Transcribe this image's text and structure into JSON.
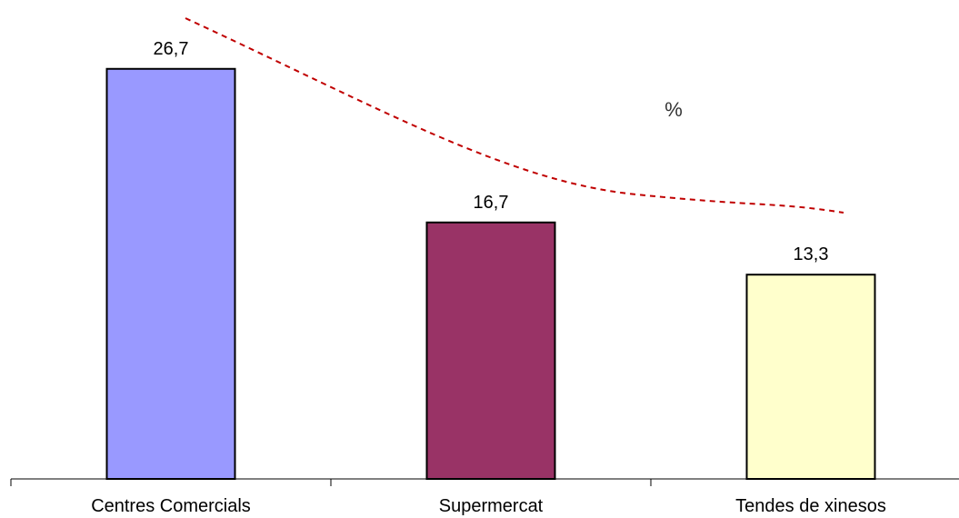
{
  "chart_data": {
    "type": "bar",
    "categories": [
      "Centres Comercials",
      "Supermercat",
      "Tendes de xinesos"
    ],
    "values": [
      26.7,
      16.7,
      13.3
    ],
    "value_labels": [
      "26,7",
      "16,7",
      "13,3"
    ],
    "unit": "%",
    "bar_colors": [
      "#9999FF",
      "#993366",
      "#FFFFCC"
    ],
    "bar_outline": "#000000",
    "trendline": {
      "type": "polynomial",
      "style": "dashed",
      "color": "#C00000"
    },
    "ylim": [
      0,
      30
    ],
    "grid": false,
    "legend": "none",
    "title": "",
    "xlabel": "",
    "ylabel": ""
  }
}
